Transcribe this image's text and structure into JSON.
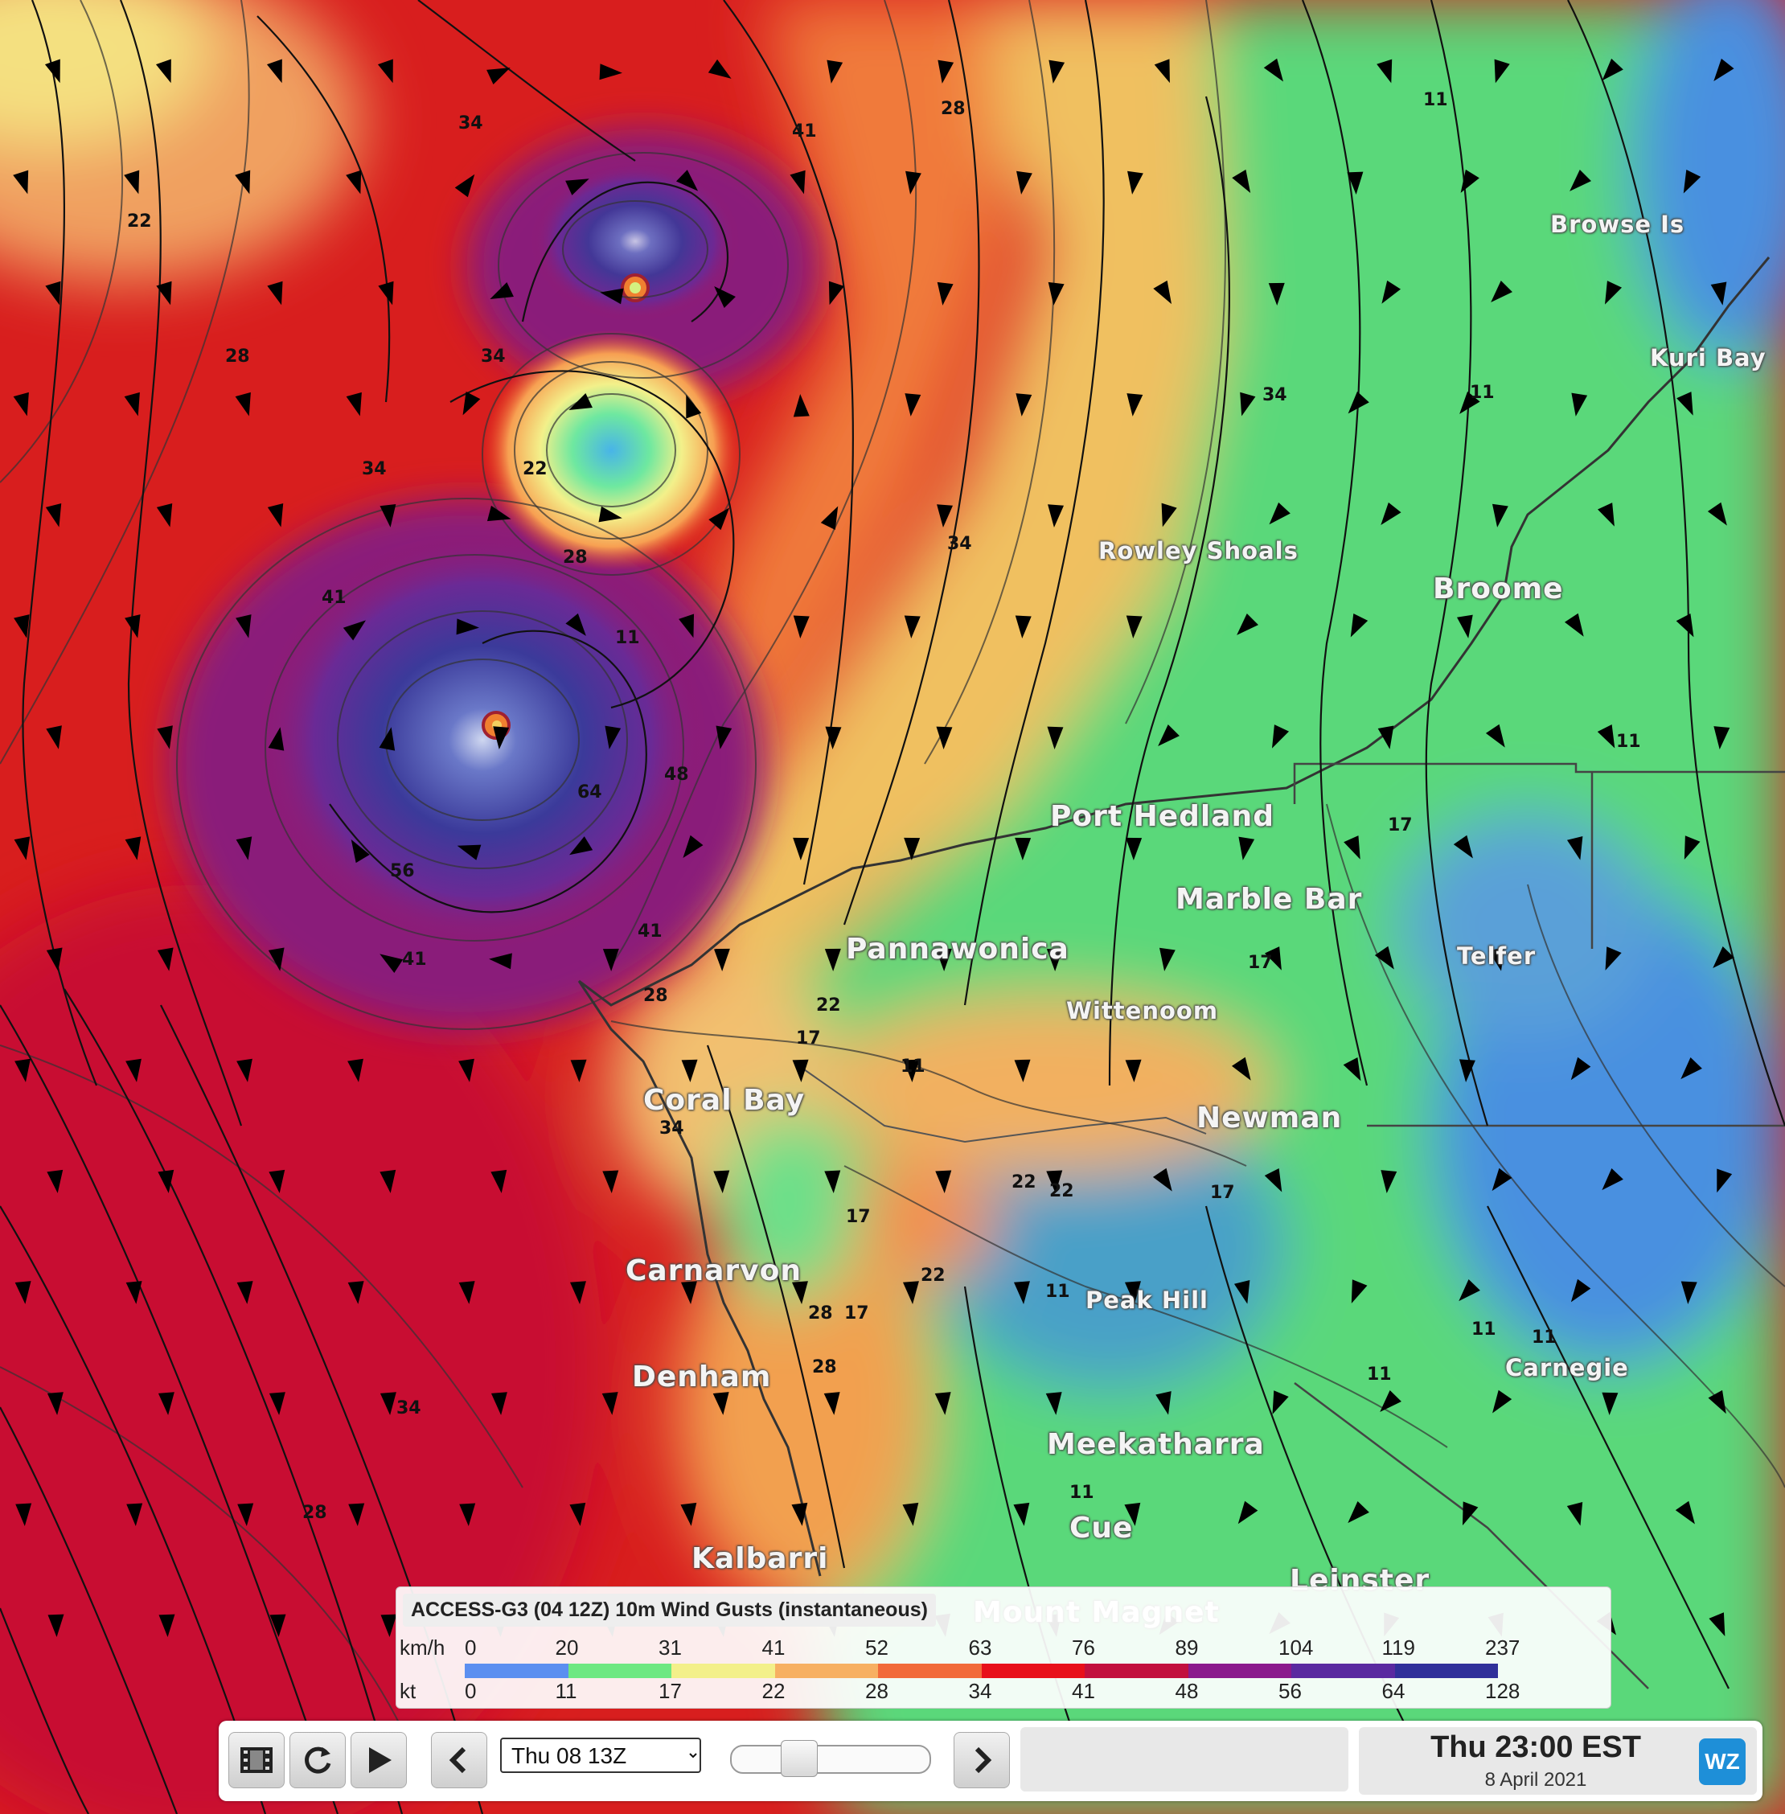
{
  "map": {
    "places": [
      {
        "name": "Browse Is"
      },
      {
        "name": "Kuri Bay"
      },
      {
        "name": "Rowley Shoals"
      },
      {
        "name": "Broome"
      },
      {
        "name": "Port Hedland"
      },
      {
        "name": "Marble Bar"
      },
      {
        "name": "Pannawonica"
      },
      {
        "name": "Telfer"
      },
      {
        "name": "Wittenoom"
      },
      {
        "name": "Coral Bay"
      },
      {
        "name": "Newman"
      },
      {
        "name": "Carnarvon"
      },
      {
        "name": "Peak Hill"
      },
      {
        "name": "Denham"
      },
      {
        "name": "Carnegie"
      },
      {
        "name": "Meekatharra"
      },
      {
        "name": "Cue"
      },
      {
        "name": "Kalbarri"
      },
      {
        "name": "Leinster"
      },
      {
        "name": "Mount Magnet"
      }
    ],
    "contour_labels": [
      "34",
      "41",
      "28",
      "22",
      "28",
      "34",
      "22",
      "28",
      "34",
      "41",
      "11",
      "48",
      "64",
      "56",
      "41",
      "41",
      "28",
      "22",
      "17",
      "11",
      "22",
      "17",
      "28",
      "34",
      "17",
      "17",
      "11",
      "11",
      "22",
      "28",
      "17",
      "34",
      "11",
      "11",
      "17",
      "11",
      "11",
      "11",
      "11",
      "22",
      "34",
      "28",
      "34"
    ]
  },
  "legend": {
    "title": "ACCESS-G3 (04 12Z) 10m Wind Gusts (instantaneous)",
    "unit_kmh": "km/h",
    "unit_kt": "kt",
    "kmh_ticks": [
      "0",
      "20",
      "31",
      "41",
      "52",
      "63",
      "76",
      "89",
      "104",
      "119",
      "237"
    ],
    "kt_ticks": [
      "0",
      "11",
      "17",
      "22",
      "28",
      "34",
      "41",
      "48",
      "56",
      "64",
      "128"
    ],
    "colors": [
      "#5b8ff0",
      "#6ee882",
      "#f3f08a",
      "#f7b062",
      "#f26a3a",
      "#e8101a",
      "#c2103e",
      "#8a1a8c",
      "#5a2aa0",
      "#30309a"
    ]
  },
  "toolbar": {
    "time_select_value": "Thu 08 13Z",
    "slider_position": 0.3,
    "time_main": "Thu 23:00 EST",
    "time_date": "8 April 2021",
    "logo": "WZ"
  }
}
